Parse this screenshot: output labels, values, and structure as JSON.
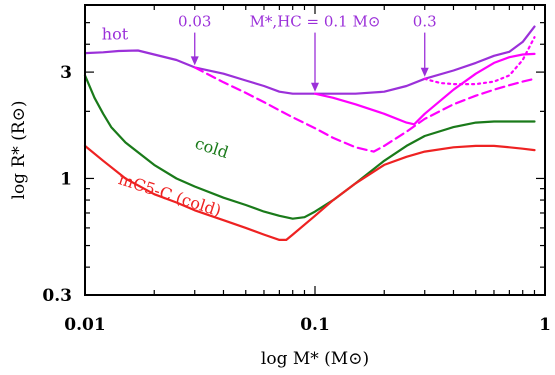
{
  "chart_data": {
    "type": "line",
    "xlabel": "log M* (M⊙)",
    "ylabel": "log R* (R⊙)",
    "x_scale": "log",
    "y_scale": "log",
    "xlim": [
      0.01,
      1
    ],
    "ylim": [
      0.3,
      6.0
    ],
    "x_ticks": [
      {
        "v": 0.01,
        "label": "0.01"
      },
      {
        "v": 0.1,
        "label": "0.1"
      },
      {
        "v": 1,
        "label": "1"
      }
    ],
    "y_ticks": [
      {
        "v": 0.3,
        "label": "0.3"
      },
      {
        "v": 1,
        "label": "1"
      },
      {
        "v": 3,
        "label": "3"
      }
    ],
    "grid": false,
    "series": [
      {
        "name": "hot",
        "color": "#9b30d9",
        "style": "solid",
        "x": [
          0.01,
          0.012,
          0.014,
          0.017,
          0.02,
          0.025,
          0.03,
          0.04,
          0.05,
          0.06,
          0.07,
          0.08,
          0.1,
          0.12,
          0.15,
          0.2,
          0.25,
          0.3,
          0.4,
          0.5,
          0.6,
          0.7,
          0.8,
          0.9
        ],
        "y": [
          3.65,
          3.68,
          3.73,
          3.75,
          3.6,
          3.4,
          3.15,
          2.95,
          2.75,
          2.6,
          2.45,
          2.4,
          2.4,
          2.4,
          2.4,
          2.45,
          2.6,
          2.8,
          3.05,
          3.3,
          3.55,
          3.7,
          4.1,
          4.8
        ]
      },
      {
        "name": "",
        "color": "#ff00ff",
        "style": "solid",
        "x": [
          0.1,
          0.12,
          0.15,
          0.2,
          0.25,
          0.27,
          0.3,
          0.4,
          0.5,
          0.6,
          0.7,
          0.8,
          0.9
        ],
        "y": [
          2.4,
          2.3,
          2.15,
          1.95,
          1.78,
          1.75,
          1.95,
          2.5,
          2.95,
          3.3,
          3.5,
          3.6,
          3.62
        ]
      },
      {
        "name": "",
        "color": "#ff00ff",
        "style": "dashed",
        "x": [
          0.03,
          0.035,
          0.04,
          0.05,
          0.06,
          0.07,
          0.08,
          0.1,
          0.12,
          0.15,
          0.18,
          0.2,
          0.25,
          0.3,
          0.4,
          0.5,
          0.6,
          0.7,
          0.8,
          0.9
        ],
        "y": [
          3.15,
          2.9,
          2.7,
          2.42,
          2.2,
          2.02,
          1.88,
          1.68,
          1.52,
          1.38,
          1.32,
          1.4,
          1.62,
          1.85,
          2.15,
          2.35,
          2.5,
          2.62,
          2.72,
          2.8
        ]
      },
      {
        "name": "",
        "color": "#ff00ff",
        "style": "dotted",
        "x": [
          0.3,
          0.35,
          0.4,
          0.5,
          0.6,
          0.7,
          0.8,
          0.9
        ],
        "y": [
          2.8,
          2.68,
          2.65,
          2.65,
          2.72,
          2.9,
          3.4,
          4.3
        ]
      },
      {
        "name": "cold",
        "color": "#1a7a1a",
        "style": "solid",
        "x": [
          0.01,
          0.011,
          0.012,
          0.013,
          0.015,
          0.02,
          0.025,
          0.03,
          0.04,
          0.05,
          0.06,
          0.07,
          0.08,
          0.09,
          0.1,
          0.12,
          0.15,
          0.2,
          0.25,
          0.3,
          0.4,
          0.5,
          0.6,
          0.7,
          0.8,
          0.9
        ],
        "y": [
          2.9,
          2.3,
          1.95,
          1.7,
          1.45,
          1.15,
          1.0,
          0.92,
          0.82,
          0.76,
          0.71,
          0.68,
          0.66,
          0.67,
          0.71,
          0.8,
          0.95,
          1.2,
          1.4,
          1.55,
          1.7,
          1.78,
          1.8,
          1.8,
          1.8,
          1.8
        ]
      },
      {
        "name": "mC5-C (cold)",
        "color": "#ee2222",
        "style": "solid",
        "x": [
          0.01,
          0.012,
          0.015,
          0.02,
          0.025,
          0.03,
          0.04,
          0.05,
          0.06,
          0.07,
          0.075,
          0.08,
          0.1,
          0.12,
          0.15,
          0.2,
          0.25,
          0.3,
          0.4,
          0.5,
          0.6,
          0.7,
          0.8,
          0.9
        ],
        "y": [
          1.4,
          1.2,
          1.0,
          0.85,
          0.78,
          0.72,
          0.65,
          0.6,
          0.56,
          0.53,
          0.53,
          0.56,
          0.68,
          0.8,
          0.95,
          1.15,
          1.25,
          1.32,
          1.38,
          1.4,
          1.4,
          1.38,
          1.36,
          1.34
        ]
      }
    ],
    "series_labels": [
      {
        "text": "hot",
        "color": "#9b30d9",
        "x": 0.0135,
        "y": 4.2
      },
      {
        "text": "cold",
        "color": "#1a7a1a",
        "x": 0.035,
        "y": 1.3
      },
      {
        "text": "mC5-C (cold)",
        "color": "#ee2222",
        "x": 0.023,
        "y": 0.8
      }
    ],
    "annotations": [
      {
        "text": "0.03",
        "color": "#9b30d9",
        "x": 0.03,
        "y_tip": 3.15,
        "y_text": 4.9
      },
      {
        "text": "M*,HC = 0.1 M⊙",
        "color": "#9b30d9",
        "x": 0.1,
        "y_tip": 2.4,
        "y_text": 4.9
      },
      {
        "text": "0.3",
        "color": "#9b30d9",
        "x": 0.3,
        "y_tip": 2.8,
        "y_text": 4.9
      }
    ]
  }
}
